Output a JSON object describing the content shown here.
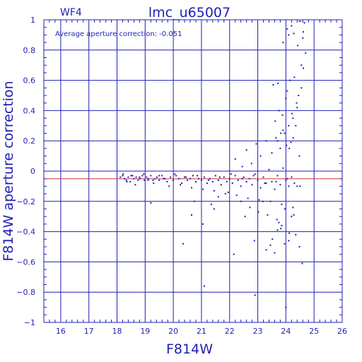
{
  "chart_data": {
    "type": "scatter",
    "title": "lmc_u65007",
    "subtitle": "WF4",
    "annotation": "Average aperture correction: -0.051",
    "xlabel": "F814W",
    "ylabel": "F814W aperture correction",
    "xlim": [
      15.4,
      26
    ],
    "ylim": [
      -1,
      1
    ],
    "x_ticks": [
      16,
      17,
      18,
      19,
      20,
      21,
      22,
      23,
      24,
      25,
      26
    ],
    "y_ticks": [
      -1,
      -0.8,
      -0.6,
      -0.4,
      -0.2,
      0,
      0.2,
      0.4,
      0.6,
      0.8,
      1
    ],
    "x_tick_labels": [
      "16",
      "17",
      "18",
      "19",
      "20",
      "21",
      "22",
      "23",
      "24",
      "25",
      "26"
    ],
    "y_tick_labels": [
      "−1",
      "−0.8",
      "−0.6",
      "−0.4",
      "−0.2",
      "0",
      "0.2",
      "0.4",
      "0.6",
      "0.8",
      "1"
    ],
    "grid": true,
    "reference_line": -0.051,
    "colors": {
      "axes": "#1f1fb4",
      "points": "#1f1fb4",
      "reference_line": "#cc3333"
    },
    "points": {
      "x": [
        18.12,
        18.2,
        18.26,
        18.33,
        18.4,
        18.47,
        18.55,
        18.6,
        18.68,
        18.75,
        18.82,
        18.9,
        18.97,
        19.05,
        19.12,
        19.2,
        19.28,
        19.35,
        19.42,
        19.5,
        19.6,
        19.7,
        19.78,
        19.9,
        20.0,
        20.1,
        20.2,
        20.3,
        20.4,
        20.5,
        20.6,
        20.7,
        20.8,
        20.9,
        21.0,
        21.1,
        21.2,
        21.3,
        21.4,
        21.5,
        21.6,
        21.7,
        21.8,
        21.9,
        22.0,
        22.1,
        22.2,
        22.3,
        22.4,
        22.5,
        22.6,
        22.7,
        22.8,
        22.9,
        23.0,
        23.1,
        23.2,
        23.3,
        23.4,
        23.5,
        23.6,
        23.7,
        23.8,
        23.9,
        24.0,
        24.1,
        24.2,
        24.3,
        24.4,
        24.5,
        18.22,
        18.35,
        18.5,
        18.65,
        18.8,
        18.95,
        19.1,
        19.3,
        19.5,
        19.65,
        19.85,
        20.05,
        20.25,
        20.45,
        20.65,
        20.85,
        21.05,
        21.25,
        21.45,
        21.65,
        21.85,
        22.05,
        22.25,
        22.45,
        22.65,
        22.85,
        23.05,
        23.25,
        23.45,
        23.65,
        23.85,
        24.05,
        24.25,
        19.2,
        20.35,
        20.65,
        20.75,
        21.05,
        21.45,
        21.6,
        21.35,
        21.95,
        22.15,
        22.4,
        22.55,
        22.72,
        22.88,
        23.02,
        23.18,
        23.35,
        23.52,
        23.68,
        23.82,
        23.96,
        24.12,
        24.28,
        24.48,
        22.2,
        22.45,
        22.6,
        22.78,
        22.95,
        23.1,
        23.3,
        23.5,
        23.65,
        23.8,
        23.95,
        24.1,
        24.25,
        24.4,
        24.55,
        23.55,
        23.62,
        23.75,
        23.88,
        24.0,
        24.05,
        24.15,
        24.22,
        24.3,
        24.38,
        24.45,
        24.55,
        24.62,
        24.7,
        23.9,
        24.02,
        24.18,
        24.35,
        24.6,
        23.7,
        23.82,
        24.12,
        24.26,
        24.48,
        21.1,
        22.9,
        23.3,
        23.45,
        23.7,
        23.85,
        23.95,
        24.1,
        24.35,
        24.58,
        23.6,
        23.75,
        24.0,
        24.2,
        24.05,
        24.2,
        24.5,
        24.62,
        24.28,
        24.1,
        23.9,
        24.42,
        23.72,
        24.66
      ],
      "y": [
        -0.04,
        -0.03,
        -0.05,
        -0.06,
        -0.04,
        -0.07,
        -0.03,
        -0.05,
        -0.04,
        -0.06,
        -0.05,
        -0.03,
        -0.06,
        -0.04,
        -0.05,
        -0.03,
        -0.06,
        -0.05,
        -0.04,
        -0.06,
        -0.03,
        -0.05,
        -0.07,
        -0.04,
        -0.06,
        -0.03,
        -0.05,
        -0.08,
        -0.04,
        -0.06,
        -0.05,
        -0.03,
        -0.07,
        -0.05,
        -0.06,
        -0.04,
        -0.08,
        -0.05,
        -0.07,
        -0.03,
        -0.06,
        -0.09,
        -0.04,
        -0.07,
        -0.05,
        -0.08,
        -0.03,
        -0.06,
        -0.1,
        -0.04,
        -0.07,
        -0.05,
        -0.09,
        -0.02,
        -0.06,
        -0.11,
        -0.04,
        -0.08,
        0.01,
        -0.07,
        -0.12,
        -0.03,
        -0.09,
        0.02,
        -0.06,
        -0.1,
        -0.04,
        -0.08,
        -0.1,
        -0.1,
        -0.02,
        -0.07,
        -0.03,
        -0.09,
        -0.04,
        -0.02,
        -0.06,
        -0.08,
        -0.03,
        -0.05,
        -0.1,
        -0.02,
        -0.09,
        -0.04,
        -0.11,
        -0.03,
        -0.12,
        -0.06,
        -0.13,
        -0.04,
        -0.15,
        -0.02,
        -0.16,
        -0.05,
        -0.18,
        -0.03,
        -0.19,
        -0.08,
        -0.2,
        -0.07,
        -0.22,
        -0.05,
        -0.24,
        -0.21,
        -0.48,
        -0.29,
        -0.2,
        -0.35,
        -0.25,
        -0.17,
        -0.22,
        -0.14,
        -0.55,
        -0.2,
        -0.3,
        -0.24,
        -0.46,
        -0.27,
        -0.2,
        -0.29,
        -0.45,
        -0.32,
        -0.38,
        -0.25,
        -0.41,
        -0.29,
        -0.5,
        0.08,
        0.03,
        0.14,
        0.05,
        0.18,
        0.1,
        0.2,
        0.12,
        0.22,
        0.15,
        0.25,
        0.3,
        0.35,
        0.42,
        0.55,
        0.57,
        0.33,
        0.4,
        0.37,
        0.48,
        0.53,
        0.6,
        0.38,
        0.62,
        0.45,
        0.5,
        0.7,
        0.68,
        0.78,
        0.27,
        0.17,
        0.19,
        0.3,
        0.88,
        0.2,
        0.25,
        0.15,
        0.22,
        0.1,
        -0.76,
        -0.82,
        -0.52,
        -0.49,
        -0.39,
        -0.36,
        -0.48,
        -0.46,
        -0.42,
        -0.61,
        -0.54,
        -0.34,
        -0.9,
        -0.3,
        0.94,
        0.96,
        0.99,
        0.92,
        0.91,
        0.9,
        0.85,
        0.83,
        0.58,
        0.98
      ]
    }
  }
}
